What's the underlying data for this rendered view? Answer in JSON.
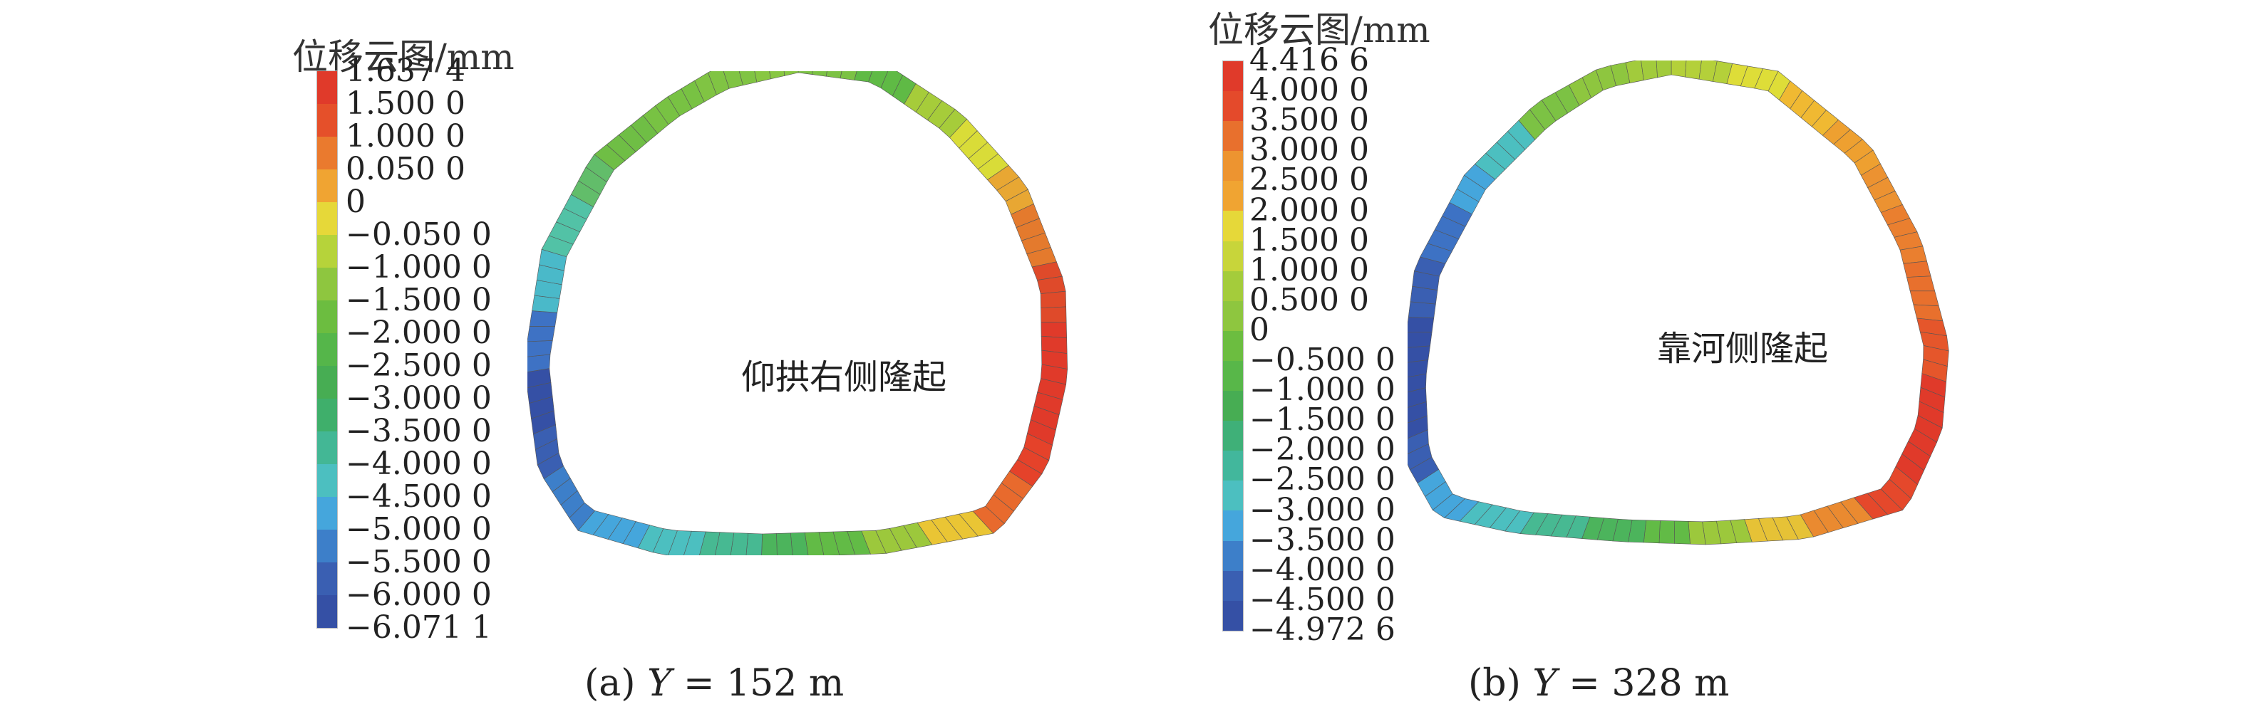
{
  "panels": [
    {
      "legend_title": "位移云图/mm",
      "scale_labels": [
        "1.637 4",
        "1.500 0",
        "1.000 0",
        "0.050 0",
        "0",
        "−0.050 0",
        "−1.000 0",
        "−1.500 0",
        "−2.000 0",
        "−2.500 0",
        "−3.000 0",
        "−3.500 0",
        "−4.000 0",
        "−4.500 0",
        "−5.000 0",
        "−5.500 0",
        "−6.000 0",
        "−6.071 1"
      ],
      "scale_colors": [
        "#e03a2a",
        "#e5502a",
        "#ea7a2e",
        "#f0a432",
        "#e6d839",
        "#b6d33a",
        "#8ec63f",
        "#6cbd40",
        "#55b64a",
        "#47ad53",
        "#3faf6b",
        "#43b795",
        "#4cbfc0",
        "#45a6dc",
        "#3d7fc9",
        "#3a5fb2",
        "#3550a5"
      ],
      "annotation": "仰拱右侧隆起",
      "caption_prefix": "(a) ",
      "caption_var": "Y",
      "caption_rest": " = 152 m",
      "ring_colors": [
        "#7cc244",
        "#5fba45",
        "#a6cc3a",
        "#d9dc38",
        "#e8a733",
        "#e47a2d",
        "#df4a2a",
        "#e03a2a",
        "#e03a2a",
        "#e5422a",
        "#e86a2d",
        "#eac534",
        "#9cc83c",
        "#62bb46",
        "#4cb45c",
        "#47b992",
        "#4cbfc0",
        "#45a6dc",
        "#3d7fc9",
        "#3a5fb2",
        "#3550a5",
        "#3e72c4",
        "#4ab9c9",
        "#52c2a6",
        "#62bd6a",
        "#6fbe45",
        "#78c243",
        "#80c443",
        "#88c742"
      ]
    },
    {
      "legend_title": "位移云图/mm",
      "scale_labels": [
        "4.416 6",
        "4.000 0",
        "3.500 0",
        "3.000 0",
        "2.500 0",
        "2.000 0",
        "1.500 0",
        "1.000 0",
        "0.500 0",
        "0",
        "−0.500 0",
        "−1.000 0",
        "−1.500 0",
        "−2.000 0",
        "−2.500 0",
        "−3.000 0",
        "−3.500 0",
        "−4.000 0",
        "−4.500 0",
        "−4.972 6"
      ],
      "scale_colors": [
        "#e03a2a",
        "#e44a2b",
        "#e8702d",
        "#ed9430",
        "#f0a432",
        "#e6d839",
        "#c8d53a",
        "#a4cc3b",
        "#8ec63f",
        "#6cbd40",
        "#58b749",
        "#47ad53",
        "#3fb078",
        "#42b79c",
        "#4cbfc0",
        "#45a6dc",
        "#3d7fc9",
        "#3a5fb2",
        "#3550a5"
      ],
      "annotation": "靠河侧隆起",
      "caption_prefix": "(b) ",
      "caption_var": "Y",
      "caption_rest": " = 328 m",
      "ring_colors": [
        "#b4d03a",
        "#dedd38",
        "#f0b932",
        "#eea030",
        "#ec9231",
        "#ea7f2f",
        "#e8702d",
        "#e5562b",
        "#e03a2a",
        "#e03a2a",
        "#e5482b",
        "#ea8a30",
        "#e6c236",
        "#9cc83c",
        "#62bb46",
        "#4cb45c",
        "#47b992",
        "#4cbfc0",
        "#45a6dc",
        "#3a5fb2",
        "#3550a5",
        "#3550a5",
        "#3a5fb2",
        "#3d72c4",
        "#45a6dc",
        "#4cbfc0",
        "#7cc244",
        "#8ec63f",
        "#a2cb3c"
      ]
    }
  ]
}
